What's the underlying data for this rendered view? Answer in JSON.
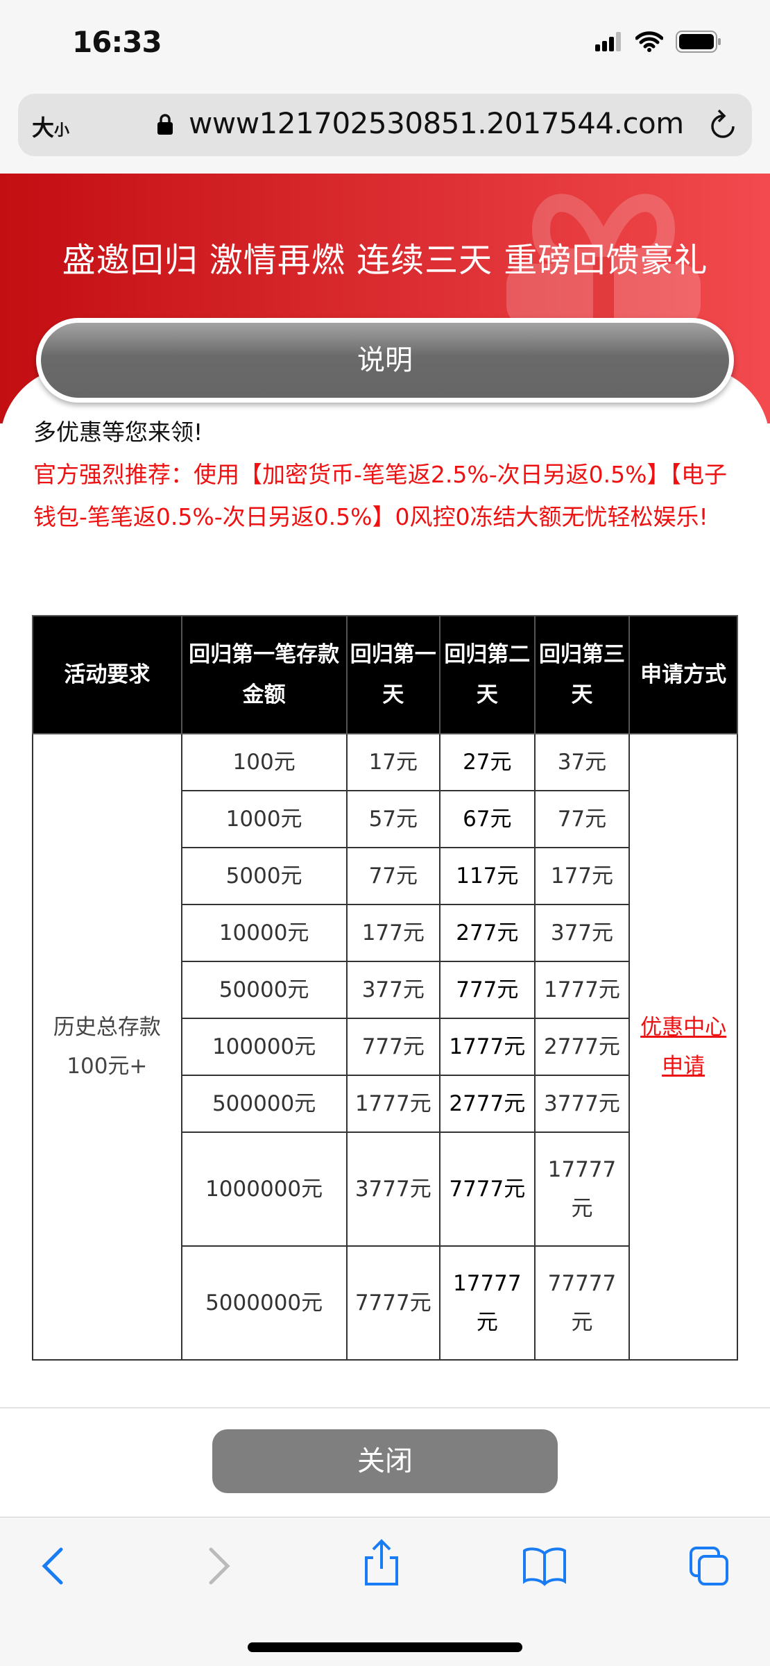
{
  "status_bar": {
    "time": "16:33"
  },
  "browser": {
    "text_size_label": "大",
    "text_size_small": "小",
    "url": "www121702530851.2017544.com"
  },
  "banner": {
    "title": "盛邀回归 激情再燃 连续三天 重磅回馈豪礼",
    "explain_button": "说明"
  },
  "intro": {
    "line1": "多优惠等您来领!",
    "recommend": "官方强烈推荐：使用【加密货币-笔笔返2.5%-次日另返0.5%】【电子钱包-笔笔返0.5%-次日另返0.5%】0风控0冻结大额无忧轻松娱乐!"
  },
  "table": {
    "headers": [
      "活动要求",
      "回归第一笔存款金额",
      "回归第一天",
      "回归第二天",
      "回归第三天",
      "申请方式"
    ],
    "requirement": "历史总存款100元+",
    "apply_link": "优惠中心申请",
    "rows": [
      [
        "100元",
        "17元",
        "27元",
        "37元"
      ],
      [
        "1000元",
        "57元",
        "67元",
        "77元"
      ],
      [
        "5000元",
        "77元",
        "117元",
        "177元"
      ],
      [
        "10000元",
        "177元",
        "277元",
        "377元"
      ],
      [
        "50000元",
        "377元",
        "777元",
        "1777元"
      ],
      [
        "100000元",
        "777元",
        "1777元",
        "2777元"
      ],
      [
        "500000元",
        "1777元",
        "2777元",
        "3777元"
      ],
      [
        "1000000元",
        "3777元",
        "7777元",
        "17777元"
      ],
      [
        "5000000元",
        "7777元",
        "17777元",
        "77777元"
      ]
    ]
  },
  "footer": {
    "close_button": "关闭"
  },
  "colors": {
    "accent_red": "#ee1111",
    "banner_start": "#c30e12",
    "banner_end": "#f24a4e"
  },
  "toolbar": {
    "icons": [
      "back-icon",
      "forward-icon",
      "share-icon",
      "bookmarks-icon",
      "tabs-icon"
    ]
  }
}
